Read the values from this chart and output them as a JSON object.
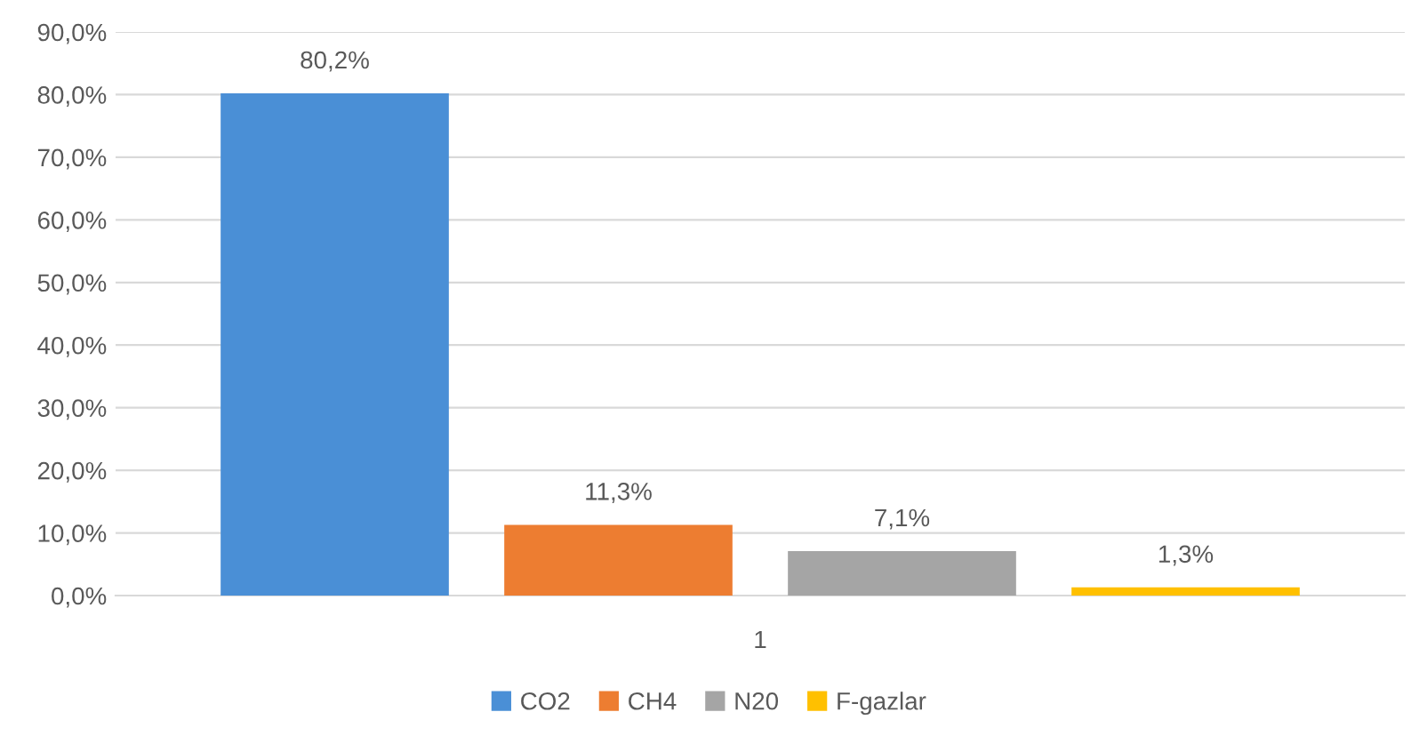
{
  "chart_data": {
    "type": "bar",
    "categories": [
      "1"
    ],
    "series": [
      {
        "name": "CO2",
        "color": "#4a8fd6",
        "values": [
          80.2
        ],
        "value_labels": [
          "80,2%"
        ]
      },
      {
        "name": "CH4",
        "color": "#ed7d31",
        "values": [
          11.3
        ],
        "value_labels": [
          "11,3%"
        ]
      },
      {
        "name": "N20",
        "color": "#a5a5a5",
        "values": [
          7.1
        ],
        "value_labels": [
          "7,1%"
        ]
      },
      {
        "name": "F-gazlar",
        "color": "#ffc000",
        "values": [
          1.3
        ],
        "value_labels": [
          "1,3%"
        ]
      }
    ],
    "ylim": [
      0,
      90
    ],
    "yticks": [
      {
        "value": 0,
        "label": "0,0%"
      },
      {
        "value": 10,
        "label": "10,0%"
      },
      {
        "value": 20,
        "label": "20,0%"
      },
      {
        "value": 30,
        "label": "30,0%"
      },
      {
        "value": 40,
        "label": "40,0%"
      },
      {
        "value": 50,
        "label": "50,0%"
      },
      {
        "value": 60,
        "label": "60,0%"
      },
      {
        "value": 70,
        "label": "70,0%"
      },
      {
        "value": 80,
        "label": "80,0%"
      },
      {
        "value": 90,
        "label": "90,0%"
      }
    ],
    "grid": "y",
    "legend": "bottom"
  }
}
